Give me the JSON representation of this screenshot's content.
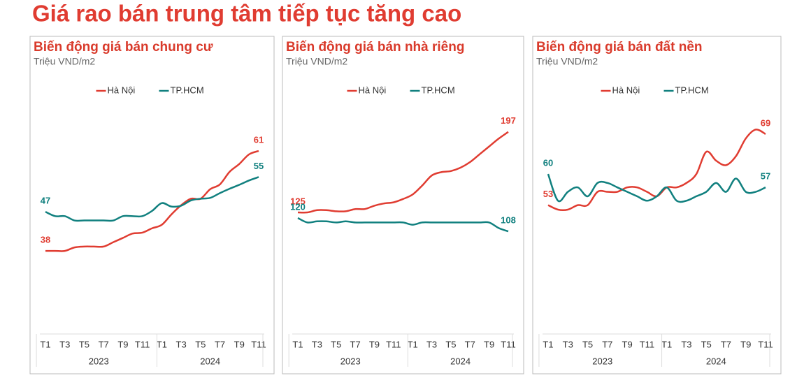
{
  "title": "Giá rao bán trung tâm tiếp tục tăng cao",
  "chart_data": [
    {
      "type": "line",
      "title": "Biến động giá bán chung cư",
      "subtitle": "Triệu VND/m2",
      "categories": [
        "T1",
        null,
        "T3",
        null,
        "T5",
        null,
        "T7",
        null,
        "T9",
        null,
        "T11",
        null,
        "T1",
        null,
        "T3",
        null,
        "T5",
        null,
        "T7",
        null,
        "T9",
        null,
        "T11"
      ],
      "category_groups": [
        {
          "label": "2023",
          "count": 12
        },
        {
          "label": "2024",
          "count": 11
        }
      ],
      "series": [
        {
          "name": "Hà Nội",
          "color": "#e03c31",
          "values": [
            38,
            38,
            38,
            38.8,
            39,
            39,
            39,
            40,
            41,
            42,
            42.2,
            43.2,
            44,
            46.4,
            48.5,
            50,
            50,
            52.2,
            53.3,
            56.2,
            58,
            60.2,
            61
          ]
        },
        {
          "name": "TP.HCM",
          "color": "#11807f",
          "values": [
            47,
            46,
            46,
            45,
            45,
            45,
            45,
            45,
            46,
            46,
            46,
            47.2,
            49,
            48.2,
            48.4,
            49.6,
            50,
            50.2,
            51.3,
            52.3,
            53.2,
            54.2,
            55
          ]
        }
      ],
      "ylim": [
        25,
        70
      ],
      "legend": "top",
      "data_labels": "ends"
    },
    {
      "type": "line",
      "title": "Biến động giá bán nhà riêng",
      "subtitle": "Triệu VND/m2",
      "categories": [
        "T1",
        null,
        "T3",
        null,
        "T5",
        null,
        "T7",
        null,
        "T9",
        null,
        "T11",
        null,
        "T1",
        null,
        "T3",
        null,
        "T5",
        null,
        "T7",
        null,
        "T9",
        null,
        "T11"
      ],
      "category_groups": [
        {
          "label": "2023",
          "count": 12
        },
        {
          "label": "2024",
          "count": 11
        }
      ],
      "series": [
        {
          "name": "Hà Nội",
          "color": "#e03c31",
          "values": [
            125,
            125,
            127,
            127,
            126,
            126,
            128,
            128,
            131,
            133,
            134,
            137,
            141,
            149,
            158,
            161,
            162,
            165,
            170,
            177,
            184,
            191,
            197
          ]
        },
        {
          "name": "TP.HCM",
          "color": "#11807f",
          "values": [
            120,
            116,
            117,
            117,
            116,
            117,
            116,
            116,
            116,
            116,
            116,
            116,
            114,
            116,
            116,
            116,
            116,
            116,
            116,
            116,
            116,
            111,
            108
          ]
        }
      ],
      "ylim": [
        40,
        215
      ],
      "legend": "top",
      "data_labels": "ends"
    },
    {
      "type": "line",
      "title": "Biến động giá bán đất nền",
      "subtitle": "Triệu VND/m2",
      "categories": [
        "T1",
        null,
        "T3",
        null,
        "T5",
        null,
        "T7",
        null,
        "T9",
        null,
        "T11",
        null,
        "T1",
        null,
        "T3",
        null,
        "T5",
        null,
        "T7",
        null,
        "T9",
        null,
        "T11"
      ],
      "category_groups": [
        {
          "label": "2023",
          "count": 12
        },
        {
          "label": "2024",
          "count": 11
        }
      ],
      "series": [
        {
          "name": "Hà Nội",
          "color": "#e03c31",
          "values": [
            53,
            52,
            52,
            53,
            53,
            56,
            56,
            56,
            57,
            57,
            56,
            55,
            57,
            57,
            58,
            60,
            65,
            63,
            62,
            64,
            68,
            70,
            69
          ]
        },
        {
          "name": "TP.HCM",
          "color": "#11807f",
          "values": [
            60,
            54,
            56,
            57,
            55,
            58,
            58,
            57,
            56,
            55,
            54,
            55,
            57,
            54,
            54,
            55,
            56,
            58,
            56,
            59,
            56,
            56,
            57
          ]
        }
      ],
      "ylim": [
        30,
        74
      ],
      "legend": "top",
      "data_labels": "ends"
    }
  ]
}
